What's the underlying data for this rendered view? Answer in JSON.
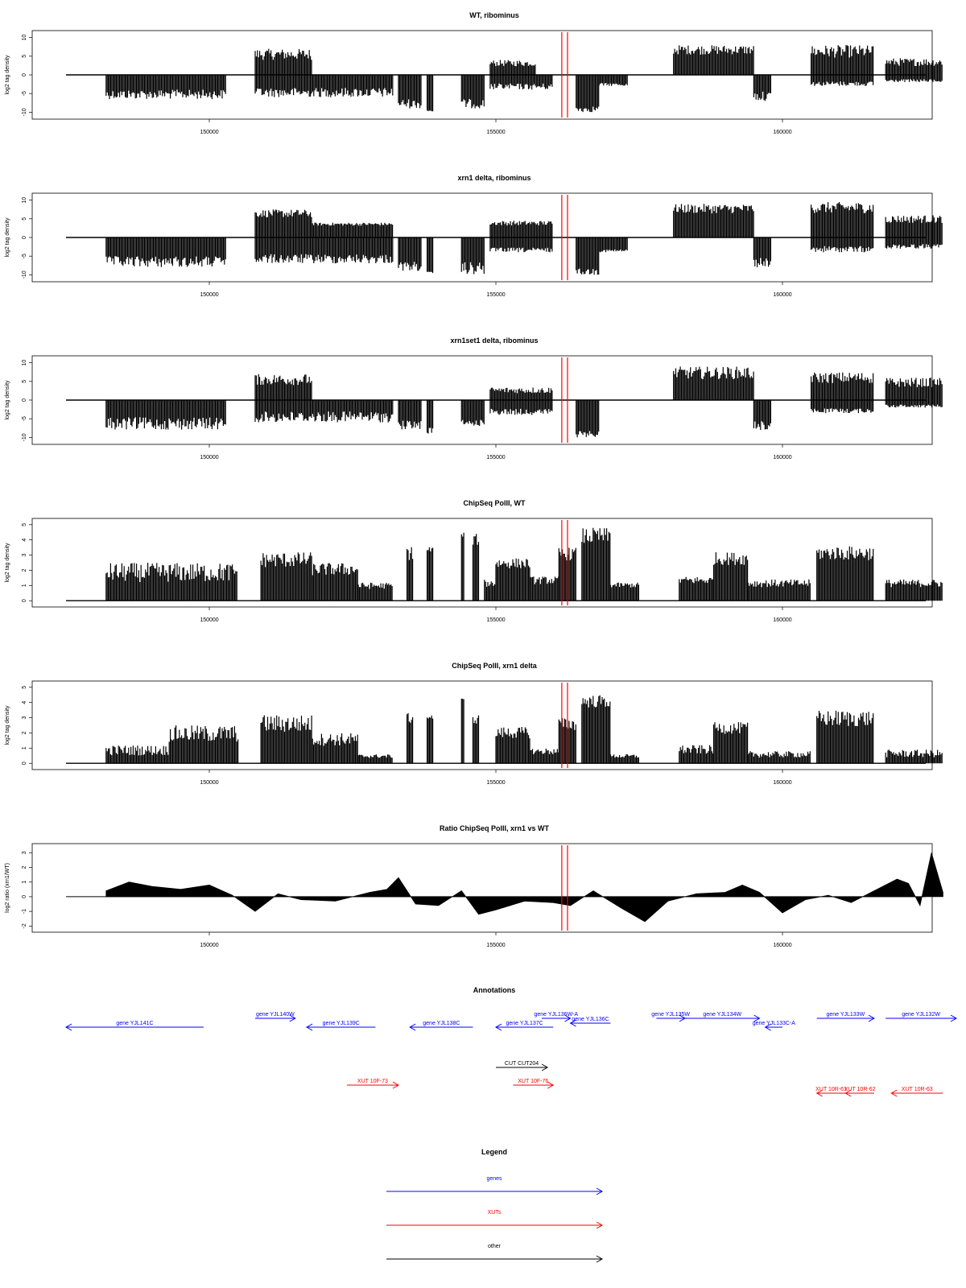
{
  "colors": {
    "gene": "#0000ff",
    "xut": "#ff0000",
    "other": "#000000",
    "marker": "#ff0000",
    "signal": "#000000"
  },
  "chart_data": [
    {
      "type": "bar",
      "title": "WT, ribominus",
      "ylabel": "log2 tag density",
      "xlim": [
        147500,
        162500
      ],
      "ylim": [
        -11,
        11
      ],
      "xticks": [
        150000,
        155000,
        160000
      ],
      "yticks": [
        10,
        5,
        0,
        -5,
        -10
      ],
      "markers": [
        156150,
        156250
      ],
      "segments": [
        {
          "x": [
            148200,
            150300
          ],
          "y": [
            -3.5,
            -6.5
          ]
        },
        {
          "x": [
            150800,
            151800
          ],
          "y": [
            3.5,
            7
          ]
        },
        {
          "x": [
            150800,
            153200
          ],
          "y": [
            -3,
            -6
          ]
        },
        {
          "x": [
            153300,
            153700
          ],
          "y": [
            -6,
            -9
          ]
        },
        {
          "x": [
            153800,
            153900
          ],
          "y": [
            -9,
            -10
          ]
        },
        {
          "x": [
            154400,
            154800
          ],
          "y": [
            -6,
            -9
          ]
        },
        {
          "x": [
            154900,
            155700
          ],
          "y": [
            2,
            4
          ]
        },
        {
          "x": [
            154900,
            156000
          ],
          "y": [
            -2,
            -4
          ]
        },
        {
          "x": [
            156400,
            156800
          ],
          "y": [
            -8,
            -10
          ]
        },
        {
          "x": [
            156800,
            157300
          ],
          "y": [
            -2,
            -3
          ]
        },
        {
          "x": [
            158100,
            159500
          ],
          "y": [
            5,
            8
          ]
        },
        {
          "x": [
            159500,
            159800
          ],
          "y": [
            -4,
            -7
          ]
        },
        {
          "x": [
            160500,
            161600
          ],
          "y": [
            4,
            8
          ]
        },
        {
          "x": [
            160500,
            161600
          ],
          "y": [
            -1.5,
            -3
          ]
        },
        {
          "x": [
            161800,
            162800
          ],
          "y": [
            2,
            4.5
          ]
        },
        {
          "x": [
            161800,
            162800
          ],
          "y": [
            -1,
            -2
          ]
        }
      ]
    },
    {
      "type": "bar",
      "title": "xrn1 delta, ribominus",
      "ylabel": "log2 tag density",
      "xlim": [
        147500,
        162500
      ],
      "ylim": [
        -11,
        11
      ],
      "xticks": [
        150000,
        155000,
        160000
      ],
      "yticks": [
        10,
        5,
        0,
        -5,
        -10
      ],
      "markers": [
        156150,
        156250
      ],
      "segments": [
        {
          "x": [
            148200,
            150300
          ],
          "y": [
            -4.5,
            -8
          ]
        },
        {
          "x": [
            150800,
            151800
          ],
          "y": [
            5,
            7.5
          ]
        },
        {
          "x": [
            151800,
            153200
          ],
          "y": [
            3,
            4
          ]
        },
        {
          "x": [
            150800,
            153200
          ],
          "y": [
            -4,
            -7
          ]
        },
        {
          "x": [
            153300,
            153700
          ],
          "y": [
            -6,
            -9
          ]
        },
        {
          "x": [
            153800,
            153900
          ],
          "y": [
            -9,
            -10
          ]
        },
        {
          "x": [
            154400,
            154800
          ],
          "y": [
            -6,
            -10
          ]
        },
        {
          "x": [
            154900,
            156000
          ],
          "y": [
            3,
            4.5
          ]
        },
        {
          "x": [
            154900,
            156000
          ],
          "y": [
            -2.5,
            -4
          ]
        },
        {
          "x": [
            156400,
            156800
          ],
          "y": [
            -8,
            -10
          ]
        },
        {
          "x": [
            156800,
            157300
          ],
          "y": [
            -3,
            -4
          ]
        },
        {
          "x": [
            158100,
            159500
          ],
          "y": [
            6,
            9
          ]
        },
        {
          "x": [
            159500,
            159800
          ],
          "y": [
            -5,
            -8
          ]
        },
        {
          "x": [
            160500,
            161600
          ],
          "y": [
            6,
            9.5
          ]
        },
        {
          "x": [
            160500,
            161600
          ],
          "y": [
            -2,
            -4
          ]
        },
        {
          "x": [
            161800,
            162800
          ],
          "y": [
            3.5,
            6
          ]
        },
        {
          "x": [
            161800,
            162800
          ],
          "y": [
            -1.5,
            -3
          ]
        }
      ]
    },
    {
      "type": "bar",
      "title": "xrn1set1 delta, ribominus",
      "ylabel": "log2 tag density",
      "xlim": [
        147500,
        162500
      ],
      "ylim": [
        -11,
        11
      ],
      "xticks": [
        150000,
        155000,
        160000
      ],
      "yticks": [
        10,
        5,
        0,
        -5,
        -10
      ],
      "markers": [
        156150,
        156250
      ],
      "segments": [
        {
          "x": [
            148200,
            150300
          ],
          "y": [
            -4,
            -8
          ]
        },
        {
          "x": [
            150800,
            151800
          ],
          "y": [
            3.5,
            7
          ]
        },
        {
          "x": [
            150800,
            153200
          ],
          "y": [
            -2.5,
            -6
          ]
        },
        {
          "x": [
            153300,
            153700
          ],
          "y": [
            -5,
            -8
          ]
        },
        {
          "x": [
            153800,
            153900
          ],
          "y": [
            -7,
            -9
          ]
        },
        {
          "x": [
            154400,
            154800
          ],
          "y": [
            -5,
            -7
          ]
        },
        {
          "x": [
            154900,
            156000
          ],
          "y": [
            1.5,
            3.5
          ]
        },
        {
          "x": [
            154900,
            156000
          ],
          "y": [
            -2,
            -4
          ]
        },
        {
          "x": [
            156400,
            156800
          ],
          "y": [
            -8,
            -10
          ]
        },
        {
          "x": [
            158100,
            159500
          ],
          "y": [
            5,
            9
          ]
        },
        {
          "x": [
            159500,
            159800
          ],
          "y": [
            -5,
            -8
          ]
        },
        {
          "x": [
            160500,
            161600
          ],
          "y": [
            4,
            7.5
          ]
        },
        {
          "x": [
            160500,
            161600
          ],
          "y": [
            -2,
            -3.5
          ]
        },
        {
          "x": [
            161800,
            162800
          ],
          "y": [
            3,
            6
          ]
        },
        {
          "x": [
            161800,
            162800
          ],
          "y": [
            -1,
            -2
          ]
        }
      ]
    },
    {
      "type": "bar",
      "title": "ChipSeq PolII, WT",
      "ylabel": "log2 tag density",
      "xlim": [
        147500,
        162500
      ],
      "ylim": [
        -0.2,
        5.2
      ],
      "xticks": [
        150000,
        155000,
        160000
      ],
      "yticks": [
        5,
        4,
        3,
        2,
        1,
        0
      ],
      "markers": [
        156150,
        156250
      ],
      "segments": [
        {
          "x": [
            148200,
            150500
          ],
          "y": [
            1,
            2.5
          ]
        },
        {
          "x": [
            150900,
            151800
          ],
          "y": [
            2,
            3.2
          ]
        },
        {
          "x": [
            151800,
            152600
          ],
          "y": [
            1.5,
            2.5
          ]
        },
        {
          "x": [
            152600,
            153200
          ],
          "y": [
            0.7,
            1.2
          ]
        },
        {
          "x": [
            153450,
            153550
          ],
          "y": [
            2.5,
            3.6
          ]
        },
        {
          "x": [
            153800,
            153900
          ],
          "y": [
            3,
            3.6
          ]
        },
        {
          "x": [
            154400,
            154450
          ],
          "y": [
            4,
            4.5
          ]
        },
        {
          "x": [
            154600,
            154700
          ],
          "y": [
            3.5,
            4.4
          ]
        },
        {
          "x": [
            154800,
            155000
          ],
          "y": [
            0.8,
            1.4
          ]
        },
        {
          "x": [
            155000,
            155600
          ],
          "y": [
            2,
            2.8
          ]
        },
        {
          "x": [
            155600,
            156100
          ],
          "y": [
            1,
            1.6
          ]
        },
        {
          "x": [
            156100,
            156400
          ],
          "y": [
            2.5,
            3.5
          ]
        },
        {
          "x": [
            156500,
            157000
          ],
          "y": [
            3.5,
            4.8
          ]
        },
        {
          "x": [
            157000,
            157500
          ],
          "y": [
            0.8,
            1.2
          ]
        },
        {
          "x": [
            158200,
            158800
          ],
          "y": [
            1,
            1.6
          ]
        },
        {
          "x": [
            158800,
            159400
          ],
          "y": [
            2.2,
            3.2
          ]
        },
        {
          "x": [
            159400,
            160500
          ],
          "y": [
            0.8,
            1.4
          ]
        },
        {
          "x": [
            160600,
            161600
          ],
          "y": [
            2.5,
            3.6
          ]
        },
        {
          "x": [
            161800,
            162800
          ],
          "y": [
            0.8,
            1.4
          ]
        }
      ]
    },
    {
      "type": "bar",
      "title": "ChipSeq PolII, xrn1 delta",
      "ylabel": "log2 tag density",
      "xlim": [
        147500,
        162500
      ],
      "ylim": [
        -0.2,
        5.2
      ],
      "xticks": [
        150000,
        155000,
        160000
      ],
      "yticks": [
        5,
        4,
        3,
        2,
        1,
        0
      ],
      "markers": [
        156150,
        156250
      ],
      "segments": [
        {
          "x": [
            148200,
            149300
          ],
          "y": [
            0.4,
            1.2
          ]
        },
        {
          "x": [
            149300,
            150500
          ],
          "y": [
            1.2,
            2.5
          ]
        },
        {
          "x": [
            150900,
            151800
          ],
          "y": [
            1.8,
            3.2
          ]
        },
        {
          "x": [
            151800,
            152600
          ],
          "y": [
            1,
            2
          ]
        },
        {
          "x": [
            152600,
            153200
          ],
          "y": [
            0.3,
            0.6
          ]
        },
        {
          "x": [
            153450,
            153550
          ],
          "y": [
            2.5,
            3.3
          ]
        },
        {
          "x": [
            153800,
            153900
          ],
          "y": [
            2.8,
            3.2
          ]
        },
        {
          "x": [
            154400,
            154450
          ],
          "y": [
            3.8,
            4.3
          ]
        },
        {
          "x": [
            154600,
            154700
          ],
          "y": [
            2.5,
            3.2
          ]
        },
        {
          "x": [
            155000,
            155600
          ],
          "y": [
            1.5,
            2.4
          ]
        },
        {
          "x": [
            155600,
            156100
          ],
          "y": [
            0.5,
            1
          ]
        },
        {
          "x": [
            156100,
            156400
          ],
          "y": [
            2,
            3
          ]
        },
        {
          "x": [
            156500,
            157000
          ],
          "y": [
            3.5,
            4.5
          ]
        },
        {
          "x": [
            157000,
            157500
          ],
          "y": [
            0.3,
            0.6
          ]
        },
        {
          "x": [
            158200,
            158800
          ],
          "y": [
            0.5,
            1.2
          ]
        },
        {
          "x": [
            158800,
            159400
          ],
          "y": [
            1.8,
            2.7
          ]
        },
        {
          "x": [
            159400,
            160500
          ],
          "y": [
            0.3,
            0.8
          ]
        },
        {
          "x": [
            160600,
            161600
          ],
          "y": [
            2.2,
            3.5
          ]
        },
        {
          "x": [
            161800,
            162800
          ],
          "y": [
            0.3,
            0.9
          ]
        }
      ]
    },
    {
      "type": "area",
      "title": "Ratio ChipSeq PolII, xrn1 vs WT",
      "ylabel": "log2 ratio (xrn1/WT)",
      "xlim": [
        147500,
        162500
      ],
      "ylim": [
        -2.2,
        3.4
      ],
      "xticks": [
        150000,
        155000,
        160000
      ],
      "yticks": [
        3,
        2,
        1,
        0,
        -1,
        -2
      ],
      "markers": [
        156150,
        156250
      ],
      "x": [
        148200,
        148600,
        149000,
        149500,
        150000,
        150400,
        150800,
        151200,
        151600,
        152200,
        152800,
        153100,
        153300,
        153600,
        154000,
        154400,
        154700,
        155000,
        155500,
        156000,
        156300,
        156700,
        157200,
        157600,
        158000,
        158500,
        159000,
        159300,
        159600,
        160000,
        160400,
        160800,
        161200,
        161600,
        162000,
        162200,
        162400,
        162600,
        162800
      ],
      "y": [
        0.4,
        1.0,
        0.7,
        0.5,
        0.8,
        0.1,
        -1.0,
        0.2,
        -0.2,
        -0.3,
        0.3,
        0.5,
        1.3,
        -0.5,
        -0.6,
        0.4,
        -1.2,
        -0.9,
        -0.3,
        -0.4,
        -0.6,
        0.4,
        -0.8,
        -1.7,
        -0.3,
        0.2,
        0.3,
        0.8,
        0.3,
        -1.1,
        -0.2,
        0.1,
        -0.4,
        0.4,
        1.2,
        0.9,
        -0.6,
        3.0,
        0.3
      ]
    }
  ],
  "annotations": {
    "title": "Annotations",
    "xlim": [
      147500,
      162500
    ],
    "features": [
      {
        "label": "gene YJL141C",
        "type": "gene",
        "start": 147500,
        "end": 149900,
        "row": 2
      },
      {
        "label": "gene YJL140W",
        "type": "gene",
        "start": 150800,
        "end": 151500,
        "row": 0
      },
      {
        "label": "gene YJL139C",
        "type": "gene",
        "start": 151700,
        "end": 152900,
        "row": 2
      },
      {
        "label": "gene YJL138C",
        "type": "gene",
        "start": 153500,
        "end": 154600,
        "row": 2
      },
      {
        "label": "gene YJL137C",
        "type": "gene",
        "start": 155000,
        "end": 156000,
        "row": 2
      },
      {
        "label": "gene YJL136W-A",
        "type": "gene",
        "start": 155800,
        "end": 156300,
        "row": 0
      },
      {
        "label": "gene YJL136C",
        "type": "gene",
        "start": 156300,
        "end": 157000,
        "row": 1
      },
      {
        "label": "gene YJL135W",
        "type": "gene",
        "start": 157800,
        "end": 158300,
        "row": 0
      },
      {
        "label": "gene YJL134W",
        "type": "gene",
        "start": 158300,
        "end": 159600,
        "row": 0
      },
      {
        "label": "gene YJL133C-A",
        "type": "gene",
        "start": 159700,
        "end": 160000,
        "row": 2
      },
      {
        "label": "gene YJL133W",
        "type": "gene",
        "start": 160600,
        "end": 161600,
        "row": 0
      },
      {
        "label": "gene YJL132W",
        "type": "gene",
        "start": 161800,
        "end": 164100,
        "row": 0
      }
    ],
    "others": [
      {
        "label": "CUT CUT204",
        "type": "other",
        "start": 155000,
        "end": 155900
      }
    ],
    "xuts": [
      {
        "label": "XUT 10F-73",
        "type": "xut",
        "start": 152400,
        "end": 153300,
        "row": 0
      },
      {
        "label": "XUT 10F-76",
        "type": "xut",
        "start": 155300,
        "end": 156000,
        "row": 0
      },
      {
        "label": "XUT 10R-61",
        "type": "xut",
        "start": 160600,
        "end": 161100,
        "row": 1
      },
      {
        "label": "XUT 10R-62",
        "type": "xut",
        "start": 161100,
        "end": 161600,
        "row": 1
      },
      {
        "label": "XUT 10R-63",
        "type": "xut",
        "start": 161900,
        "end": 162800,
        "row": 1
      }
    ]
  },
  "legend": {
    "title": "Legend",
    "entries": [
      {
        "label": "genes",
        "type": "gene"
      },
      {
        "label": "XUTs",
        "type": "xut"
      },
      {
        "label": "other",
        "type": "other"
      }
    ]
  }
}
